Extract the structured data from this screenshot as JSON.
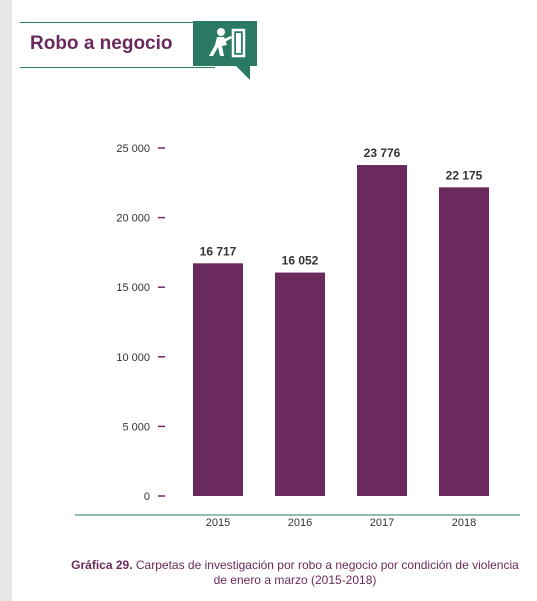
{
  "header": {
    "title": "Robo a negocio",
    "icon": "robbery-icon",
    "accent_color": "#2a7a63",
    "title_color": "#6b2a5e"
  },
  "chart_data": {
    "type": "bar",
    "categories": [
      "2015",
      "2016",
      "2017",
      "2018"
    ],
    "values": [
      16717,
      16052,
      23776,
      22175
    ],
    "value_labels": [
      "16 717",
      "16 052",
      "23 776",
      "22 175"
    ],
    "y_ticks": [
      0,
      5000,
      10000,
      15000,
      20000,
      25000
    ],
    "y_tick_labels": [
      "0",
      "5 000",
      "10 000",
      "15 000",
      "20 000",
      "25 000"
    ],
    "ylim": [
      0,
      25000
    ],
    "bar_color": "#6b2a5e",
    "grid": false
  },
  "caption": {
    "label": "Gráfica 29.",
    "text_line1": "Carpetas de investigación por robo a negocio por condición de violencia",
    "text_line2": "de enero a marzo (2015-2018)"
  }
}
